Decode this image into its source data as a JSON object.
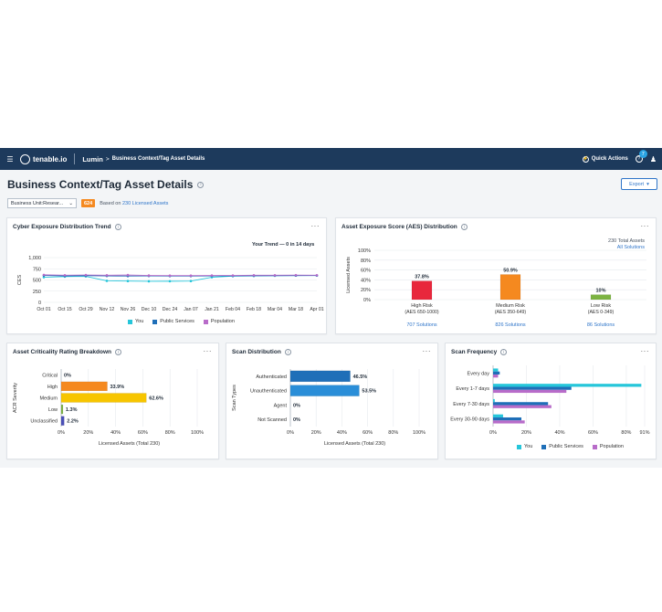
{
  "topbar": {
    "menu_icon": "hamburger-icon",
    "logo_text": "tenable.io",
    "app_name": "Lumin",
    "breadcrumb_arrow": ">",
    "breadcrumb": "Business Context/Tag Asset Details",
    "quick_actions": "Quick Actions",
    "notifications_count": "7",
    "user_icon": "user-icon"
  },
  "header": {
    "title": "Business Context/Tag Asset Details",
    "export_label": "Export",
    "filter_value": "Business Unit:Resear...",
    "asset_count_badge": "624",
    "based_on_prefix": "Based on",
    "based_on_link": "230 Licensed Assets"
  },
  "colors": {
    "you": "#26c6da",
    "public_services": "#1f6fb8",
    "population": "#b86cc9",
    "high_risk": "#e8273c",
    "medium_risk": "#f5891f",
    "low_risk": "#7cb342",
    "acr_high": "#f5891f",
    "acr_medium": "#f7c500",
    "acr_low": "#7cb342",
    "acr_unclassified": "#4a4fb8",
    "scan_dist": "#1f6fb8"
  },
  "ces_trend": {
    "title": "Cyber Exposure Distribution Trend",
    "annotation": "Your Trend — 0 in 14 days",
    "chart_data": {
      "type": "line",
      "ylabel": "CES",
      "xlabel": "",
      "ylim": [
        0,
        1000
      ],
      "yticks": [
        "1,000",
        "750",
        "500",
        "250",
        "0"
      ],
      "x": [
        "Oct 01",
        "Oct 15",
        "Oct 29",
        "Nov 12",
        "Nov 26",
        "Dec 10",
        "Dec 24",
        "Jan 07",
        "Jan 21",
        "Feb 04",
        "Feb 18",
        "Mar 04",
        "Mar 18",
        "Apr 01"
      ],
      "series": [
        {
          "name": "You",
          "values": [
            560,
            575,
            580,
            480,
            475,
            470,
            472,
            475,
            560,
            585,
            590,
            595,
            598,
            598
          ]
        },
        {
          "name": "Public Services",
          "values": [
            600,
            590,
            595,
            590,
            588,
            590,
            588,
            588,
            590,
            592,
            594,
            596,
            598,
            600
          ]
        },
        {
          "name": "Population",
          "values": [
            615,
            605,
            610,
            605,
            610,
            600,
            598,
            598,
            600,
            600,
            605,
            605,
            608,
            605
          ]
        }
      ],
      "legend": [
        "You",
        "Public Services",
        "Population"
      ],
      "grid": true,
      "legend_position": "bottom"
    }
  },
  "aes_dist": {
    "title": "Asset Exposure Score (AES) Distribution",
    "total_assets": "230 Total Assets",
    "all_solutions": "All Solutions",
    "chart_data": {
      "type": "bar",
      "ylabel": "Licensed Assets",
      "ylim": [
        0,
        100
      ],
      "yticks": [
        "100%",
        "80%",
        "60%",
        "40%",
        "20%",
        "0%"
      ],
      "categories": [
        "High Risk",
        "Medium Risk",
        "Low Risk"
      ],
      "sublabels": [
        "(AES 650-1000)",
        "(AES 350-649)",
        "(AES 0-349)"
      ],
      "values": [
        37.8,
        50.9,
        10
      ],
      "value_labels": [
        "37.8%",
        "50.9%",
        "10%"
      ],
      "solutions": [
        "707 Solutions",
        "826 Solutions",
        "86 Solutions"
      ]
    }
  },
  "acr_breakdown": {
    "title": "Asset Criticality Rating Breakdown",
    "chart_data": {
      "type": "bar",
      "orientation": "horizontal",
      "ylabel": "ACR Severity",
      "xlabel": "Licensed Assets (Total 230)",
      "xlim": [
        0,
        100
      ],
      "xticks": [
        "0%",
        "20%",
        "40%",
        "60%",
        "80%",
        "100%"
      ],
      "categories": [
        "Critical",
        "High",
        "Medium",
        "Low",
        "Unclassified"
      ],
      "values": [
        0,
        33.9,
        62.6,
        1.3,
        2.2
      ],
      "value_labels": [
        "0%",
        "33.9%",
        "62.6%",
        "1.3%",
        "2.2%"
      ]
    }
  },
  "scan_dist": {
    "title": "Scan Distribution",
    "chart_data": {
      "type": "bar",
      "orientation": "horizontal",
      "ylabel": "Scan Types",
      "xlabel": "Licensed Assets (Total 230)",
      "xlim": [
        0,
        100
      ],
      "xticks": [
        "0%",
        "20%",
        "40%",
        "60%",
        "80%",
        "100%"
      ],
      "categories": [
        "Authenticated",
        "Unauthenticated",
        "Agent",
        "Not Scanned"
      ],
      "values": [
        46.5,
        53.5,
        0,
        0
      ],
      "value_labels": [
        "46.5%",
        "53.5%",
        "0%",
        "0%"
      ]
    }
  },
  "scan_freq": {
    "title": "Scan Frequency",
    "chart_data": {
      "type": "bar",
      "orientation": "horizontal",
      "xlim": [
        0,
        91
      ],
      "xticks": [
        "0%",
        "20%",
        "40%",
        "60%",
        "80%",
        "91%"
      ],
      "categories": [
        "Every day",
        "Every 1-7 days",
        "Every 7-30 days",
        "Every 30-90 days"
      ],
      "series": [
        {
          "name": "You",
          "values": [
            3,
            89,
            1,
            6
          ]
        },
        {
          "name": "Public Services",
          "values": [
            4,
            47,
            33,
            17
          ]
        },
        {
          "name": "Population",
          "values": [
            3,
            44,
            35,
            19
          ]
        }
      ],
      "legend": [
        "You",
        "Public Services",
        "Population"
      ],
      "legend_position": "bottom"
    }
  }
}
